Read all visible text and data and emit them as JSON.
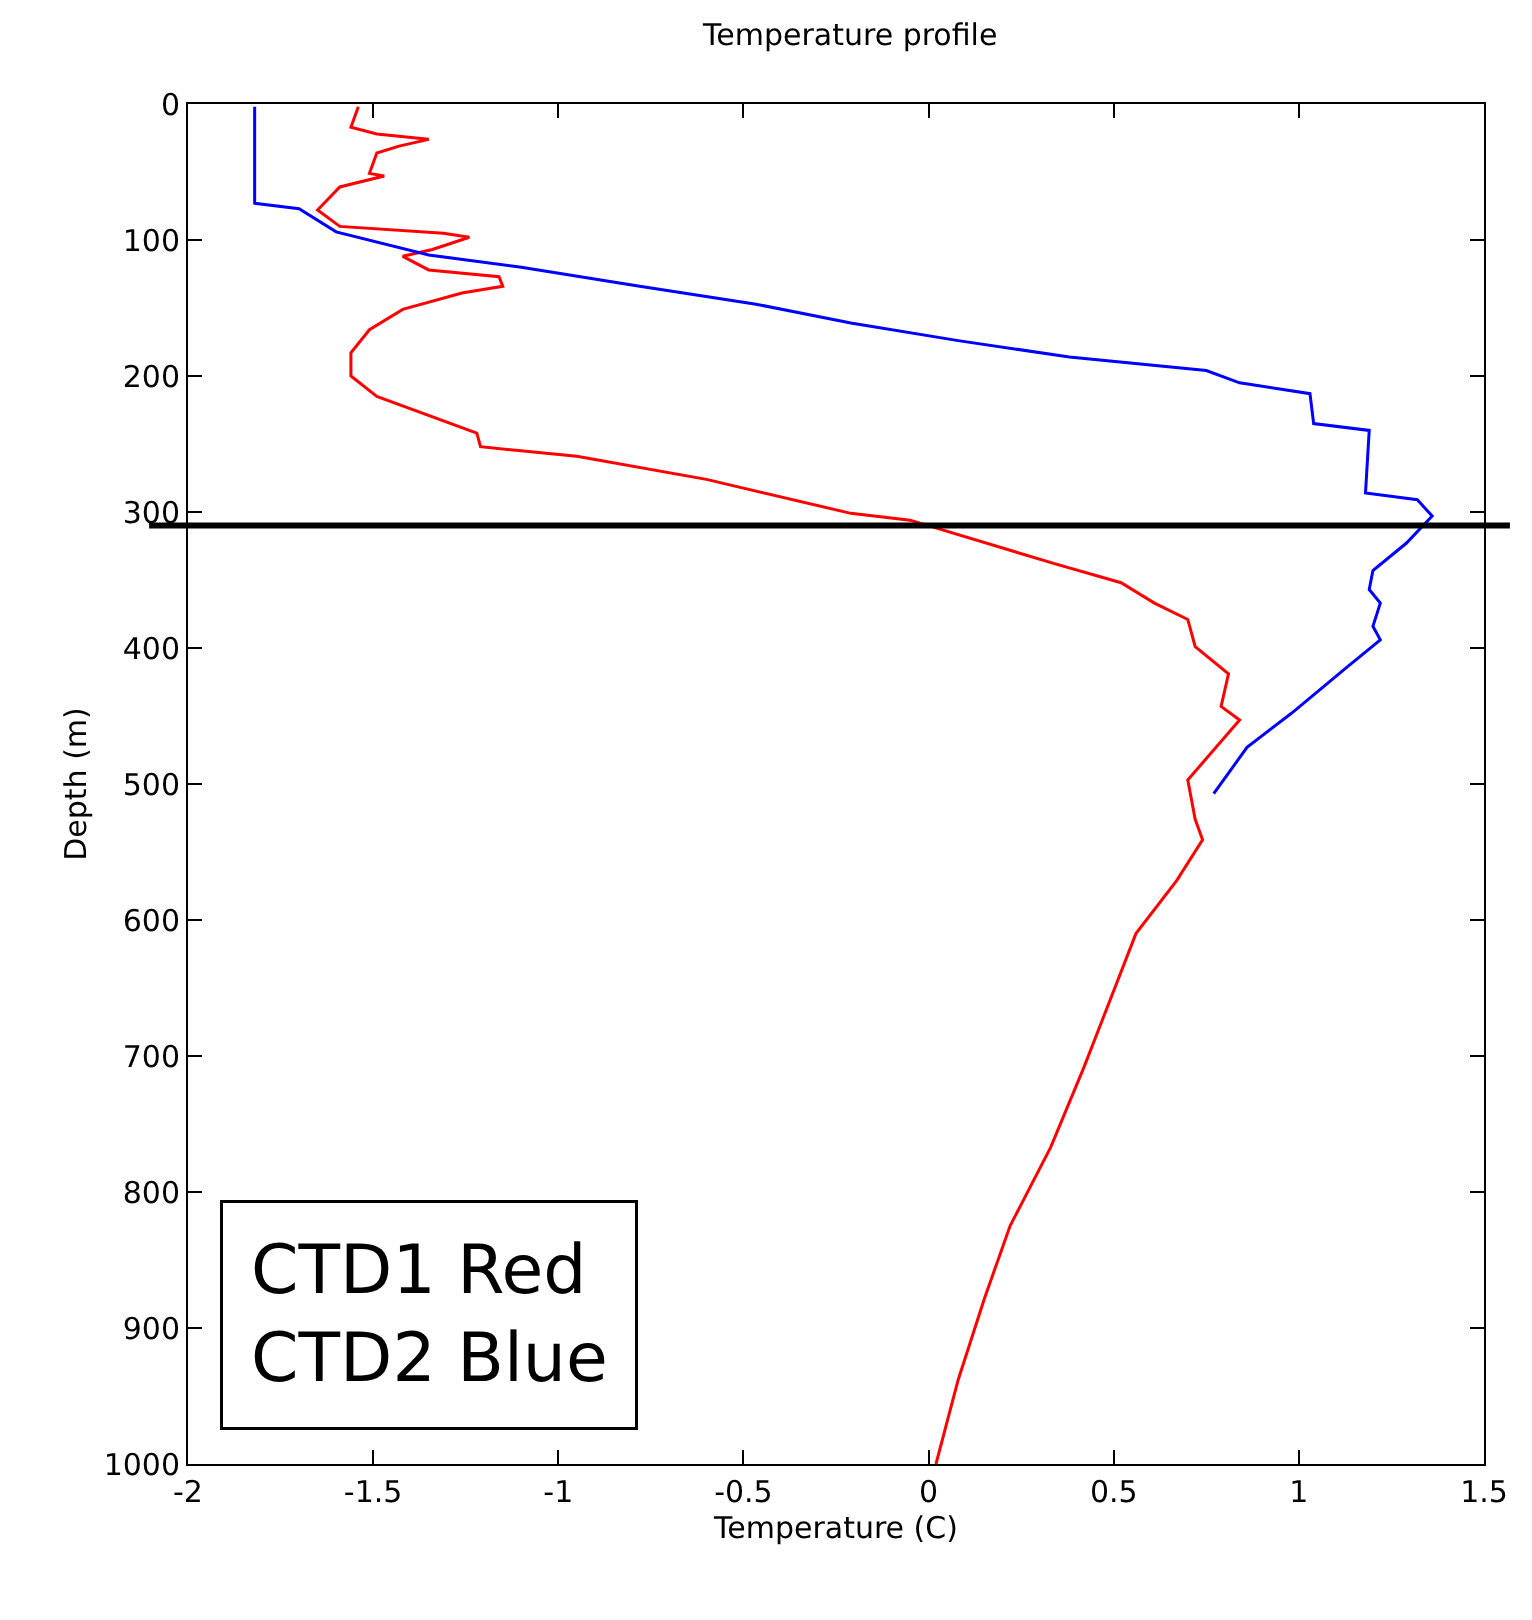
{
  "chart_data": {
    "type": "line",
    "title": "Temperature profile",
    "xlabel": "Temperature (C)",
    "ylabel": "Depth (m)",
    "xlim": [
      -2,
      1.5
    ],
    "xticks": [
      -2,
      -1.5,
      -1,
      -0.5,
      0,
      0.5,
      1,
      1.5
    ],
    "ylim": [
      1000,
      0
    ],
    "yticks": [
      0,
      100,
      200,
      300,
      400,
      500,
      600,
      700,
      800,
      900,
      1000
    ],
    "legend": false,
    "marker": "none",
    "line_style": "solid",
    "annotations": [
      "CTD1 Red",
      "CTD2 Blue"
    ],
    "ref_lines": [
      {
        "axis": "y",
        "value": 310,
        "label": null,
        "color": "#000000"
      }
    ],
    "series": [
      {
        "color": "#ff0000",
        "x": [
          -1.54,
          -1.56,
          -1.49,
          -1.35,
          -1.43,
          -1.49,
          -1.51,
          -1.47,
          -1.59,
          -1.65,
          -1.59,
          -1.31,
          -1.24,
          -1.34,
          -1.42,
          -1.35,
          -1.16,
          -1.15,
          -1.26,
          -1.42,
          -1.51,
          -1.56,
          -1.56,
          -1.49,
          -1.22,
          -1.21,
          -0.95,
          -0.6,
          -0.21,
          -0.05,
          0.34,
          0.52,
          0.61,
          0.7,
          0.72,
          0.81,
          0.79,
          0.84,
          0.7,
          0.72,
          0.74,
          0.67,
          0.56,
          0.49,
          0.42,
          0.33,
          0.22,
          0.15,
          0.08,
          0.02
        ],
        "values": [
          2,
          17,
          22,
          26,
          31,
          36,
          51,
          53,
          61,
          78,
          90,
          95,
          98,
          107,
          112,
          122,
          127,
          134,
          139,
          151,
          166,
          183,
          200,
          215,
          242,
          252,
          259,
          276,
          301,
          306,
          338,
          352,
          367,
          379,
          399,
          419,
          443,
          453,
          497,
          526,
          541,
          571,
          610,
          659,
          708,
          767,
          825,
          879,
          938,
          1000
        ]
      },
      {
        "color": "#0000ff",
        "x": [
          -1.82,
          -1.82,
          -1.7,
          -1.6,
          -1.35,
          -1.1,
          -0.78,
          -0.47,
          -0.21,
          0.08,
          0.38,
          0.75,
          0.84,
          1.03,
          1.04,
          1.19,
          1.18,
          1.32,
          1.36,
          1.29,
          1.2,
          1.19,
          1.22,
          1.2,
          1.22,
          1.13,
          0.98,
          0.86,
          0.81,
          0.77
        ],
        "values": [
          2,
          73,
          77,
          94,
          111,
          120,
          134,
          147,
          161,
          174,
          186,
          196,
          205,
          213,
          235,
          240,
          286,
          291,
          303,
          323,
          343,
          357,
          367,
          384,
          394,
          414,
          448,
          473,
          492,
          507
        ]
      }
    ]
  }
}
